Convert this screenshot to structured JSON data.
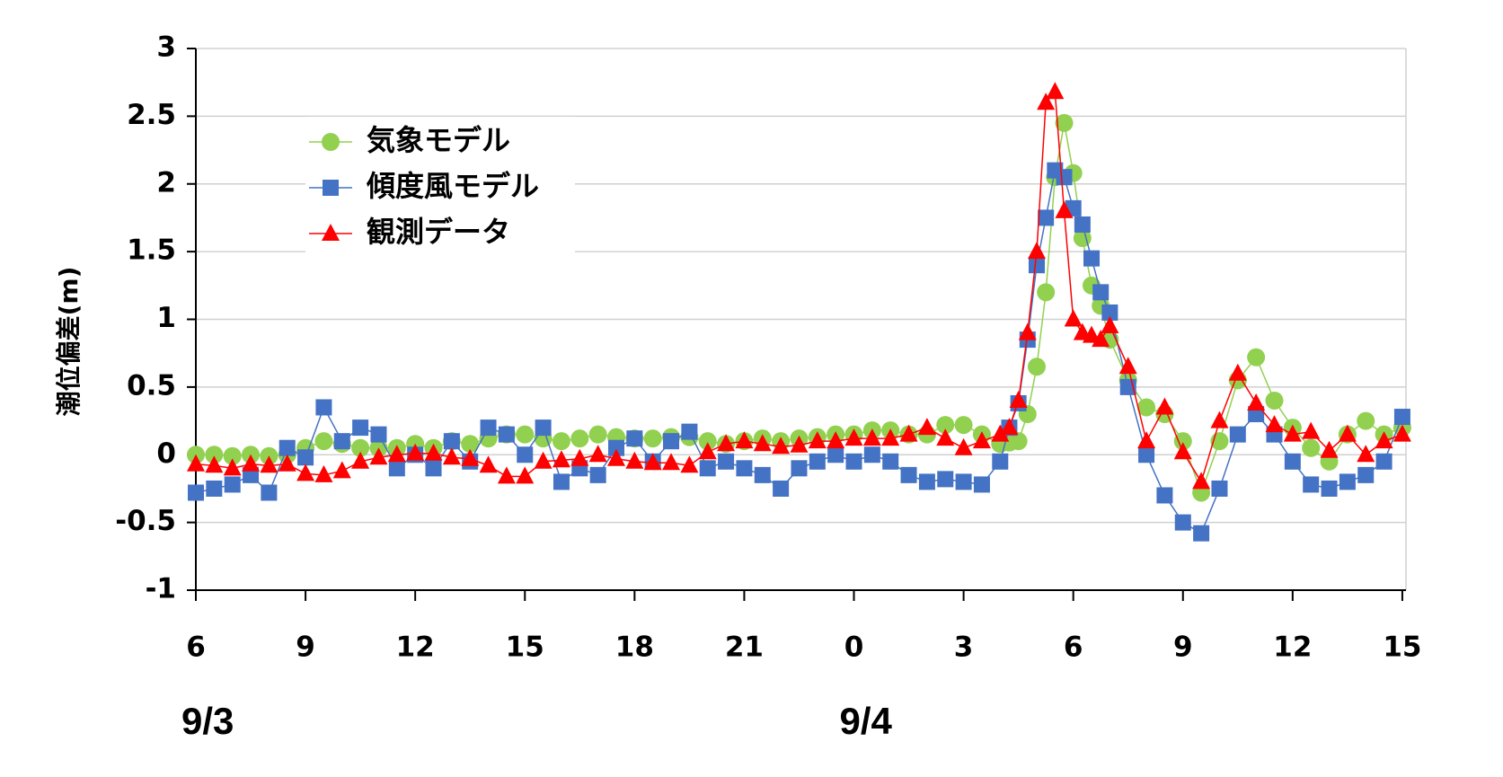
{
  "chart_data": {
    "type": "line",
    "y_label": "潮位偏差(m)",
    "x": [
      6,
      6.5,
      7,
      7.5,
      8,
      8.5,
      9,
      9.5,
      10,
      10.5,
      11,
      11.5,
      12,
      12.5,
      13,
      13.5,
      14,
      14.5,
      15,
      15.5,
      16,
      16.5,
      17,
      17.5,
      18,
      18.5,
      19,
      19.5,
      20,
      20.5,
      21,
      21.5,
      22,
      22.5,
      23,
      23.5,
      24,
      24.5,
      25,
      25.5,
      26,
      26.5,
      27,
      27.5,
      28,
      28.25,
      28.5,
      28.75,
      29,
      29.25,
      29.5,
      29.75,
      30,
      30.25,
      30.5,
      30.75,
      31,
      31.5,
      32,
      32.5,
      33,
      33.5,
      34,
      34.5,
      35,
      35.5,
      36,
      36.5,
      37,
      37.5,
      38,
      38.5,
      39
    ],
    "series": [
      {
        "name": "気象モデル",
        "color": "#92d050",
        "marker": "circle",
        "values": [
          0.0,
          0.0,
          -0.01,
          0.0,
          -0.01,
          0.0,
          0.05,
          0.1,
          0.08,
          0.05,
          0.05,
          0.05,
          0.08,
          0.05,
          0.1,
          0.08,
          0.12,
          0.15,
          0.15,
          0.12,
          0.1,
          0.12,
          0.15,
          0.13,
          0.12,
          0.12,
          0.13,
          0.13,
          0.1,
          0.08,
          0.1,
          0.12,
          0.1,
          0.12,
          0.13,
          0.15,
          0.15,
          0.18,
          0.18,
          0.15,
          0.15,
          0.22,
          0.22,
          0.15,
          0.08,
          0.09,
          0.1,
          0.3,
          0.65,
          1.2,
          2.05,
          2.45,
          2.08,
          1.6,
          1.25,
          1.1,
          0.85,
          0.55,
          0.35,
          0.3,
          0.1,
          -0.28,
          0.1,
          0.55,
          0.72,
          0.4,
          0.2,
          0.05,
          -0.05,
          0.15,
          0.25,
          0.15,
          0.2
        ]
      },
      {
        "name": "傾度風モデル",
        "color": "#4472c4",
        "marker": "square",
        "values": [
          -0.28,
          -0.25,
          -0.22,
          -0.15,
          -0.28,
          0.05,
          -0.02,
          0.35,
          0.1,
          0.2,
          0.15,
          -0.1,
          0.0,
          -0.1,
          0.1,
          -0.05,
          0.2,
          0.15,
          0.0,
          0.2,
          -0.2,
          -0.1,
          -0.15,
          0.05,
          0.12,
          -0.05,
          0.1,
          0.17,
          -0.1,
          -0.05,
          -0.1,
          -0.15,
          -0.25,
          -0.1,
          -0.05,
          0.0,
          -0.05,
          0.0,
          -0.05,
          -0.15,
          -0.2,
          -0.18,
          -0.2,
          -0.22,
          -0.05,
          0.2,
          0.38,
          0.85,
          1.4,
          1.75,
          2.1,
          2.05,
          1.82,
          1.7,
          1.45,
          1.2,
          1.05,
          0.5,
          0.0,
          -0.3,
          -0.5,
          -0.58,
          -0.25,
          0.15,
          0.3,
          0.15,
          -0.05,
          -0.22,
          -0.25,
          -0.2,
          -0.15,
          -0.05,
          0.28
        ]
      },
      {
        "name": "観測データ",
        "color": "#ff0000",
        "marker": "triangle",
        "values": [
          -0.07,
          -0.08,
          -0.1,
          -0.07,
          -0.08,
          -0.07,
          -0.14,
          -0.15,
          -0.12,
          -0.05,
          -0.02,
          0,
          0.01,
          0.01,
          -0.02,
          -0.03,
          -0.08,
          -0.16,
          -0.16,
          -0.05,
          -0.04,
          -0.03,
          0,
          -0.03,
          -0.05,
          -0.06,
          -0.06,
          -0.08,
          0.02,
          0.08,
          0.1,
          0.08,
          0.06,
          0.07,
          0.1,
          0.1,
          0.12,
          0.12,
          0.12,
          0.15,
          0.2,
          0.12,
          0.05,
          0.1,
          0.15,
          0.2,
          0.4,
          0.9,
          1.5,
          2.6,
          2.68,
          1.8,
          1.0,
          0.9,
          0.88,
          0.85,
          0.95,
          0.65,
          0.1,
          0.35,
          0.02,
          -0.2,
          0.25,
          0.6,
          0.38,
          0.22,
          0.15,
          0.17,
          0.03,
          0.15,
          0.0,
          0.1,
          0.15
        ]
      }
    ],
    "xlim": [
      6,
      39.1
    ],
    "xticks": [
      6,
      9,
      12,
      15,
      18,
      21,
      {
        "value": 24,
        "label": "0"
      },
      {
        "value": 27,
        "label": "3"
      },
      {
        "value": 30,
        "label": "6"
      },
      {
        "value": 33,
        "label": "9"
      },
      {
        "value": 36,
        "label": "12"
      },
      {
        "value": 39,
        "label": "15"
      }
    ],
    "ylim": [
      -1,
      3
    ],
    "yticks": [
      -1,
      -0.5,
      0,
      0.5,
      1,
      1.5,
      2,
      2.5,
      3
    ],
    "grid": true,
    "legend": "upper left",
    "annotations": [
      {
        "x": 6,
        "text": "9/3"
      },
      {
        "x": 24,
        "text": "9/4"
      }
    ]
  }
}
